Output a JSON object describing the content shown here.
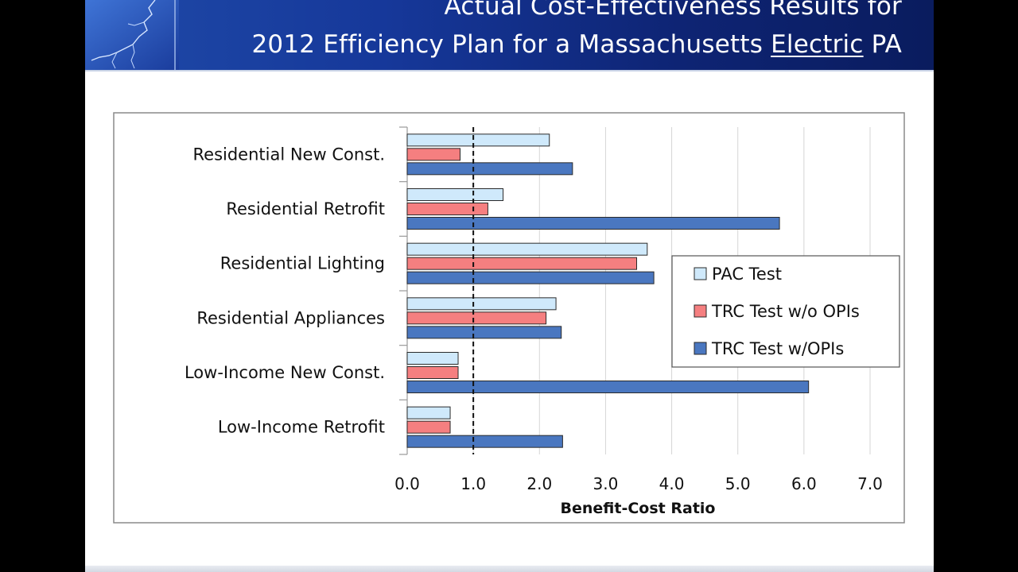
{
  "slide": {
    "title_line1": "Actual Cost-Effectiveness Results for",
    "title_line2_pre": "2012 Efficiency Plan for a Massachusetts ",
    "title_line2_underlined": "Electric",
    "title_line2_post": " PA"
  },
  "colors": {
    "header": "#1a3a9a",
    "pac": "#cfe9fb",
    "trc_wo": "#f57f80",
    "trc_w": "#4a77c0",
    "bar_stroke": "#2a2a2a"
  },
  "chart_data": {
    "type": "bar",
    "orientation": "horizontal",
    "categories": [
      "Residential New Const.",
      "Residential Retrofit",
      "Residential Lighting",
      "Residential Appliances",
      "Low-Income New Const.",
      "Low-Income Retrofit"
    ],
    "series": [
      {
        "name": "PAC Test",
        "values": [
          2.15,
          1.45,
          3.63,
          2.25,
          0.77,
          0.65
        ]
      },
      {
        "name": "TRC Test w/o OPIs",
        "values": [
          0.8,
          1.22,
          3.47,
          2.1,
          0.77,
          0.65
        ]
      },
      {
        "name": "TRC Test w/OPIs",
        "values": [
          2.5,
          5.63,
          3.73,
          2.33,
          6.07,
          2.35
        ]
      }
    ],
    "xlabel": "Benefit-Cost Ratio",
    "xlim": [
      0,
      7
    ],
    "xticks": [
      0,
      1,
      2,
      3,
      4,
      5,
      6,
      7
    ],
    "xtick_labels": [
      "0.0",
      "1.0",
      "2.0",
      "3.0",
      "4.0",
      "5.0",
      "6.0",
      "7.0"
    ],
    "reference_line": 1.0,
    "grid": true,
    "legend_position": "right"
  }
}
